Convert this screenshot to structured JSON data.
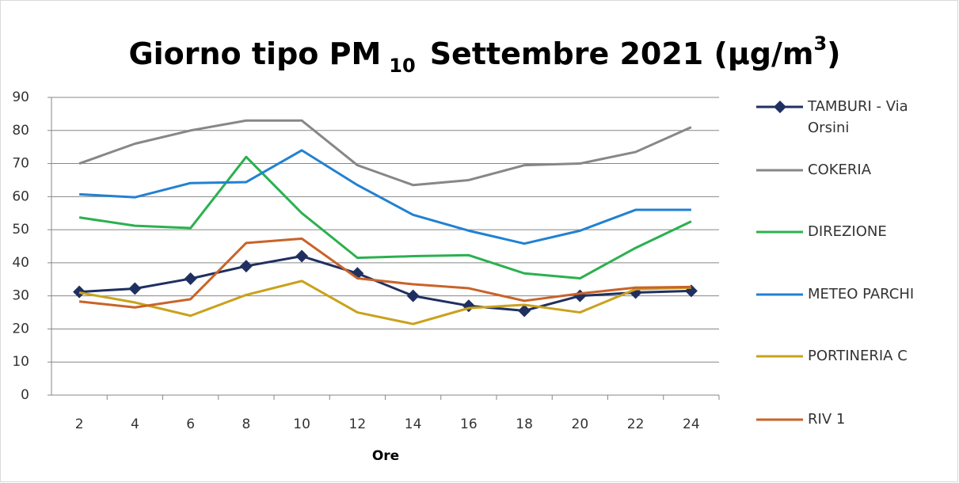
{
  "chart_data": {
    "type": "line",
    "title": [
      "Giorno tipo PM",
      "10",
      "Settembre 2021 (µg/m",
      "3",
      ")"
    ],
    "x_label": "Ore",
    "categories": [
      "2",
      "4",
      "6",
      "8",
      "10",
      "12",
      "14",
      "16",
      "18",
      "20",
      "22",
      "24"
    ],
    "ylim": [
      0,
      90
    ],
    "yticks": [
      0,
      10,
      20,
      30,
      40,
      50,
      60,
      70,
      80,
      90
    ],
    "grid": true,
    "legend": "right",
    "series": [
      {
        "name": "TAMBURI - Via Orsini",
        "color": "#1f3060",
        "marker": "diamond",
        "values": [
          31.2,
          32.2,
          35.2,
          39,
          42,
          36.8,
          30,
          27,
          25.5,
          30,
          31,
          31.5
        ]
      },
      {
        "name": "COKERIA",
        "color": "#878787",
        "values": [
          70,
          76,
          80,
          83,
          83,
          69.5,
          63.5,
          65,
          69.5,
          70,
          73.5,
          81
        ]
      },
      {
        "name": "DIREZIONE",
        "color": "#2bb04f",
        "values": [
          53.7,
          51.2,
          50.5,
          72,
          55,
          41.5,
          42,
          42.3,
          36.8,
          35.3,
          44.5,
          52.5
        ]
      },
      {
        "name": "METEO PARCHI",
        "color": "#2181d2",
        "values": [
          60.7,
          59.8,
          64.1,
          64.4,
          74,
          63.5,
          54.5,
          49.7,
          45.8,
          49.7,
          56,
          56
        ]
      },
      {
        "name": "PORTINERIA C",
        "color": "#c9a21c",
        "values": [
          31,
          28,
          24,
          30.3,
          34.5,
          25,
          21.5,
          26.3,
          27.3,
          25,
          32,
          32.5
        ]
      },
      {
        "name": "RIV 1",
        "color": "#c9632a",
        "values": [
          28.3,
          26.5,
          29,
          46,
          47.3,
          35.3,
          33.5,
          32.3,
          28.5,
          30.7,
          32.5,
          32.7
        ]
      }
    ]
  }
}
